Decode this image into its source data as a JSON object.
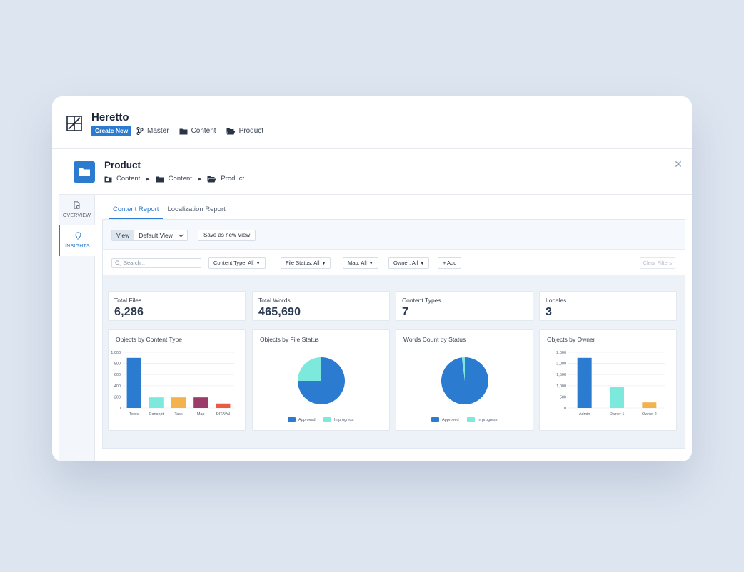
{
  "app": {
    "title": "Heretto",
    "create_new": "Create New"
  },
  "top_breadcrumb": [
    {
      "label": "Master",
      "icon": "branch-icon"
    },
    {
      "label": "Content",
      "icon": "folder-icon"
    },
    {
      "label": "Product",
      "icon": "folder-open-icon"
    }
  ],
  "panel": {
    "title": "Product",
    "breadcrumb": [
      {
        "label": "Content",
        "icon": "repository-icon"
      },
      {
        "label": "Content",
        "icon": "folder-icon"
      },
      {
        "label": "Product",
        "icon": "folder-open-icon"
      }
    ]
  },
  "sidebar": {
    "items": [
      {
        "label": "OVERVIEW",
        "icon": "document-gear-icon"
      },
      {
        "label": "INSIGHTS",
        "icon": "lightbulb-icon",
        "active": true
      }
    ]
  },
  "tabs": [
    {
      "label": "Content Report",
      "active": true
    },
    {
      "label": "Localization Report"
    }
  ],
  "viewbar": {
    "view_label": "View",
    "view_value": "Default View",
    "save_label": "Save as new View"
  },
  "filters": {
    "search_placeholder": "Search...",
    "items": [
      {
        "label": "Content Type:",
        "value": "All"
      },
      {
        "label": "File Status:",
        "value": "All"
      },
      {
        "label": "Map:",
        "value": "All"
      },
      {
        "label": "Owner:",
        "value": "All"
      }
    ],
    "add_label": "+ Add",
    "clear_label": "Clear Filters"
  },
  "stats": [
    {
      "label": "Total Files",
      "value": "6,286"
    },
    {
      "label": "Total Words",
      "value": "465,690"
    },
    {
      "label": "Content Types",
      "value": "7"
    },
    {
      "label": "Locales",
      "value": "3"
    }
  ],
  "colors": {
    "primary": "#2b7bd1",
    "teal": "#7de8dc",
    "orange": "#f2b24c",
    "plum": "#9c3a6a",
    "red": "#ea5a44"
  },
  "chart_data": [
    {
      "type": "bar",
      "title": "Objects by Content Type",
      "categories": [
        "Topic",
        "Concept",
        "Task",
        "Map",
        "DITAVal"
      ],
      "values": [
        900,
        190,
        190,
        190,
        80
      ],
      "colors": [
        "#2b7bd1",
        "#7de8dc",
        "#f2b24c",
        "#9c3a6a",
        "#ea5a44"
      ],
      "yticks": [
        "1,000",
        "800",
        "600",
        "400",
        "200",
        "0"
      ],
      "ylim": [
        0,
        1000
      ],
      "grid": true
    },
    {
      "type": "pie",
      "title": "Objects by File Status",
      "labels": [
        "Approved",
        "In progress"
      ],
      "values": [
        75,
        25
      ],
      "colors": [
        "#2b7bd1",
        "#7de8dc"
      ],
      "legend": "bottom"
    },
    {
      "type": "pie",
      "title": "Words Count by Status",
      "labels": [
        "Approved",
        "In progress"
      ],
      "values": [
        98,
        2
      ],
      "colors": [
        "#2b7bd1",
        "#7de8dc"
      ],
      "legend": "bottom"
    },
    {
      "type": "bar",
      "title": "Objects by Owner",
      "categories": [
        "Admin",
        "Owner 1",
        "Owner 2"
      ],
      "values": [
        2250,
        950,
        250
      ],
      "colors": [
        "#2b7bd1",
        "#7de8dc",
        "#f2b24c"
      ],
      "yticks": [
        "2,000",
        "2,000",
        "1,500",
        "1,000",
        "500",
        "0"
      ],
      "ylim": [
        0,
        2500
      ],
      "grid": true
    }
  ]
}
